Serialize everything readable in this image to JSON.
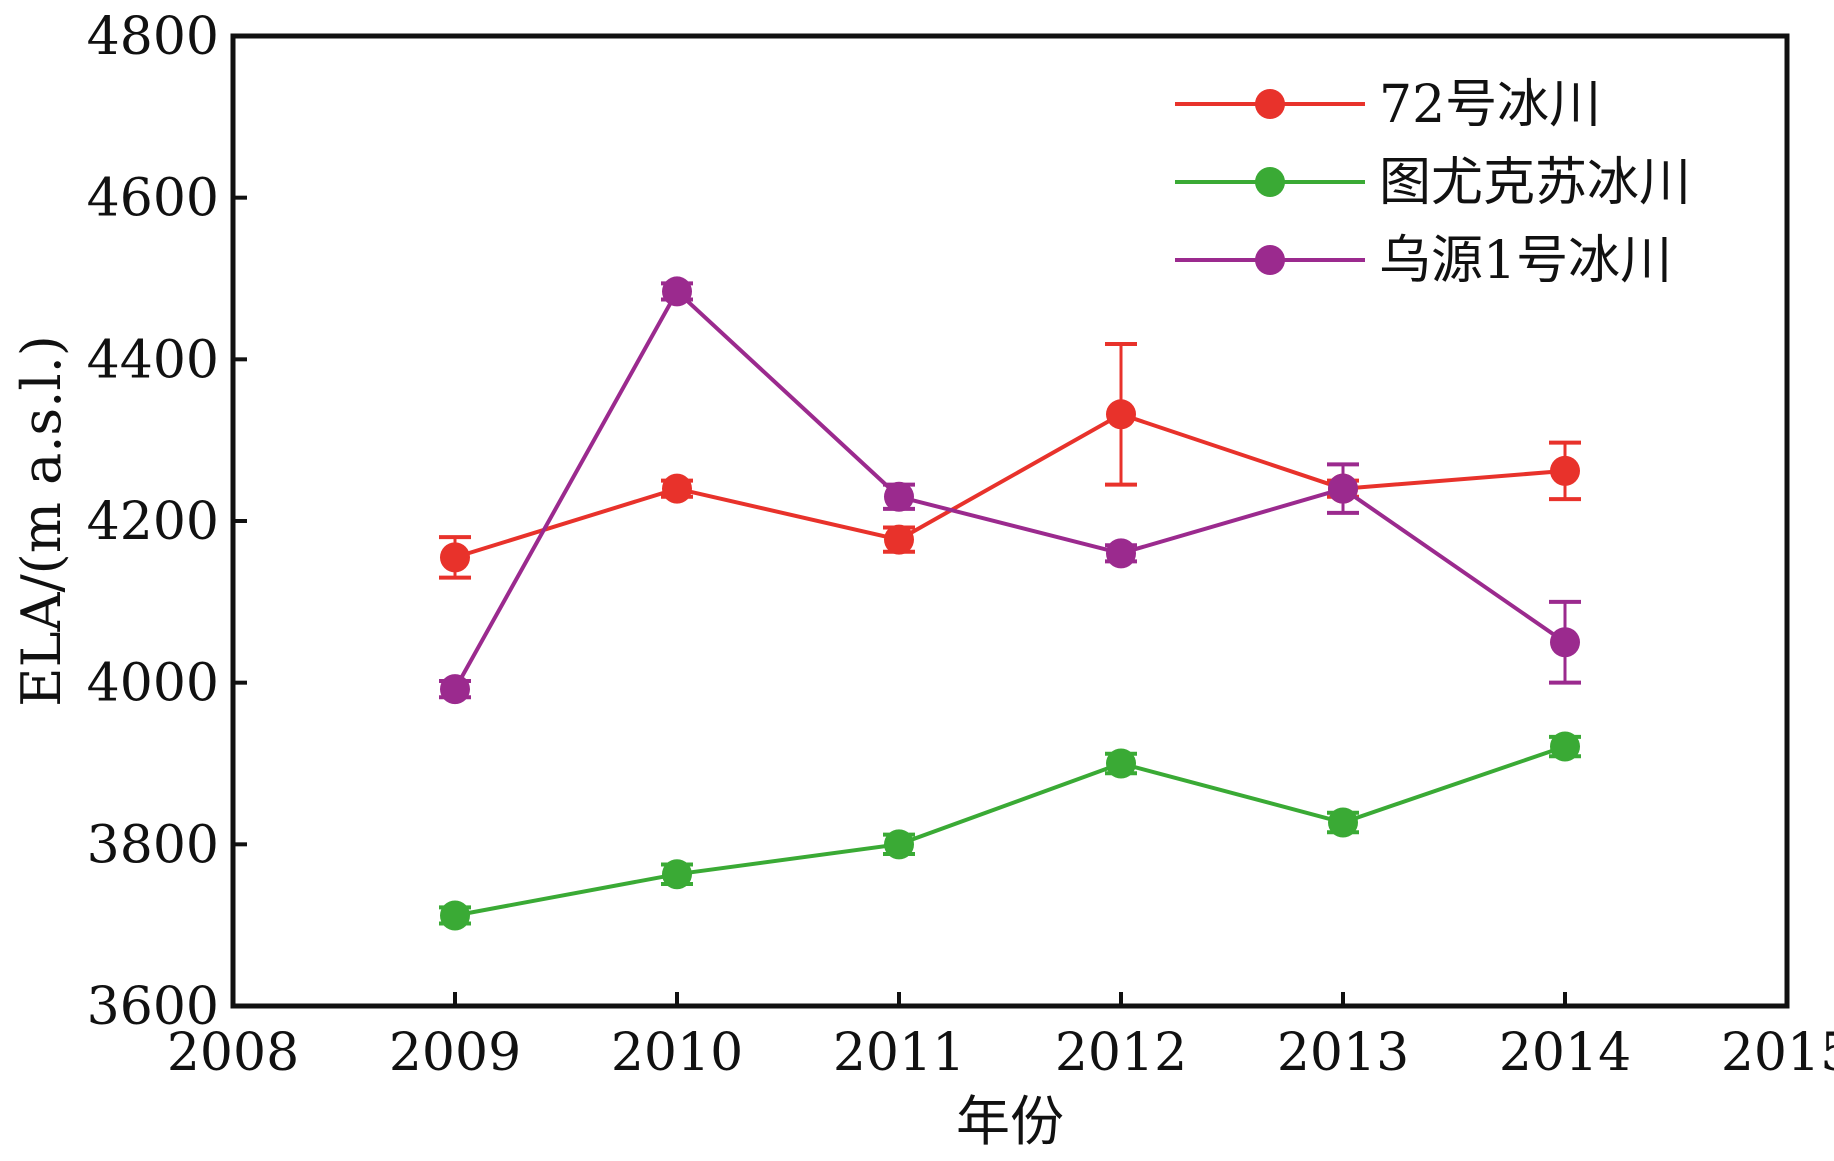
{
  "chart_data": {
    "type": "line",
    "xlabel": "年份",
    "ylabel": "ELA/(m a.s.l.)",
    "xlim": [
      2008,
      2015
    ],
    "ylim": [
      3600,
      4800
    ],
    "xticks": [
      "2008",
      "2009",
      "2010",
      "2011",
      "2012",
      "2013",
      "2014",
      "2015"
    ],
    "yticks": [
      "3600",
      "3800",
      "4000",
      "4200",
      "4400",
      "4600",
      "4800"
    ],
    "grid": false,
    "legend_position": "top-right",
    "x": [
      2009,
      2010,
      2011,
      2012,
      2013,
      2014
    ],
    "series": [
      {
        "name": "72号冰川",
        "color": "#e8322b",
        "values": [
          4155,
          4240,
          4177,
          4332,
          4240,
          4262
        ],
        "errors": [
          25,
          10,
          15,
          87,
          10,
          35
        ]
      },
      {
        "name": "图尤克苏冰川",
        "color": "#3aaa35",
        "values": [
          3712,
          3763,
          3800,
          3900,
          3827,
          3921
        ],
        "errors": [
          10,
          12,
          12,
          12,
          12,
          12
        ]
      },
      {
        "name": "乌源1号冰川",
        "color": "#9b2a8e",
        "values": [
          3992,
          4484,
          4230,
          4160,
          4240,
          4050
        ],
        "errors": [
          10,
          10,
          15,
          10,
          30,
          50
        ]
      }
    ]
  }
}
